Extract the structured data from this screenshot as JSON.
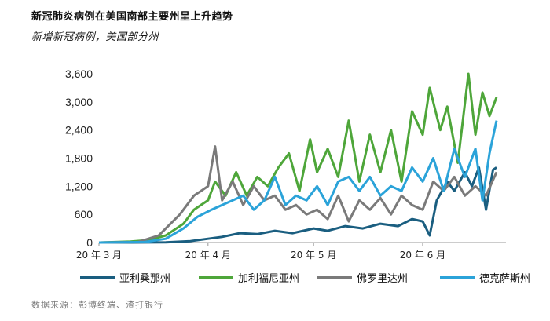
{
  "header": {
    "title": "新冠肺炎病例在美国南部主要州呈上升趋势",
    "subtitle": "新增新冠病例，美国部分州"
  },
  "footer": {
    "source": "数据来源：彭博终端、渣打银行"
  },
  "chart_data": {
    "type": "line",
    "ylim": [
      0,
      3600
    ],
    "yticks": [
      "0",
      "600",
      "1,200",
      "1,800",
      "2,400",
      "3,000",
      "3,600"
    ],
    "ytick_values": [
      0,
      600,
      1200,
      1800,
      2400,
      3000,
      3600
    ],
    "x_start": "2020-03-01",
    "x_end": "2020-06-22",
    "xticks": [
      {
        "label": "20 年 3 月",
        "date": "2020-03-01"
      },
      {
        "label": "20 年 4 月",
        "date": "2020-04-01"
      },
      {
        "label": "20 年 5 月",
        "date": "2020-05-01"
      },
      {
        "label": "20 年 6 月",
        "date": "2020-06-01"
      }
    ],
    "legend_position": "bottom",
    "series": [
      {
        "name": "亚利桑那州",
        "color": "#1a5e80",
        "points": [
          [
            "2020-03-01",
            0
          ],
          [
            "2020-03-10",
            0
          ],
          [
            "2020-03-20",
            5
          ],
          [
            "2020-03-27",
            30
          ],
          [
            "2020-04-01",
            80
          ],
          [
            "2020-04-05",
            120
          ],
          [
            "2020-04-10",
            200
          ],
          [
            "2020-04-15",
            180
          ],
          [
            "2020-04-20",
            250
          ],
          [
            "2020-04-25",
            200
          ],
          [
            "2020-05-01",
            300
          ],
          [
            "2020-05-05",
            250
          ],
          [
            "2020-05-10",
            350
          ],
          [
            "2020-05-15",
            300
          ],
          [
            "2020-05-20",
            400
          ],
          [
            "2020-05-25",
            350
          ],
          [
            "2020-05-29",
            500
          ],
          [
            "2020-06-01",
            450
          ],
          [
            "2020-06-03",
            150
          ],
          [
            "2020-06-05",
            900
          ],
          [
            "2020-06-08",
            1300
          ],
          [
            "2020-06-10",
            1100
          ],
          [
            "2020-06-13",
            1500
          ],
          [
            "2020-06-15",
            1200
          ],
          [
            "2020-06-17",
            1600
          ],
          [
            "2020-06-19",
            700
          ],
          [
            "2020-06-21",
            1550
          ],
          [
            "2020-06-22",
            1600
          ]
        ]
      },
      {
        "name": "加利福尼亚州",
        "color": "#4ea63a",
        "points": [
          [
            "2020-03-01",
            0
          ],
          [
            "2020-03-10",
            20
          ],
          [
            "2020-03-15",
            50
          ],
          [
            "2020-03-20",
            150
          ],
          [
            "2020-03-25",
            400
          ],
          [
            "2020-03-28",
            700
          ],
          [
            "2020-04-01",
            900
          ],
          [
            "2020-04-03",
            1300
          ],
          [
            "2020-04-06",
            1000
          ],
          [
            "2020-04-09",
            1500
          ],
          [
            "2020-04-12",
            1000
          ],
          [
            "2020-04-15",
            1400
          ],
          [
            "2020-04-18",
            1200
          ],
          [
            "2020-04-21",
            1600
          ],
          [
            "2020-04-24",
            1900
          ],
          [
            "2020-04-27",
            1100
          ],
          [
            "2020-04-30",
            2200
          ],
          [
            "2020-05-02",
            1500
          ],
          [
            "2020-05-05",
            2000
          ],
          [
            "2020-05-08",
            1400
          ],
          [
            "2020-05-11",
            2600
          ],
          [
            "2020-05-14",
            1300
          ],
          [
            "2020-05-17",
            2300
          ],
          [
            "2020-05-20",
            1500
          ],
          [
            "2020-05-23",
            2400
          ],
          [
            "2020-05-26",
            1300
          ],
          [
            "2020-05-29",
            2800
          ],
          [
            "2020-06-01",
            2300
          ],
          [
            "2020-06-03",
            3300
          ],
          [
            "2020-06-06",
            2400
          ],
          [
            "2020-06-08",
            2900
          ],
          [
            "2020-06-11",
            1700
          ],
          [
            "2020-06-14",
            3600
          ],
          [
            "2020-06-16",
            2300
          ],
          [
            "2020-06-18",
            3200
          ],
          [
            "2020-06-20",
            2700
          ],
          [
            "2020-06-22",
            3100
          ]
        ]
      },
      {
        "name": "佛罗里达州",
        "color": "#7a7a7a",
        "points": [
          [
            "2020-03-01",
            0
          ],
          [
            "2020-03-12",
            10
          ],
          [
            "2020-03-18",
            150
          ],
          [
            "2020-03-24",
            600
          ],
          [
            "2020-03-28",
            1000
          ],
          [
            "2020-04-01",
            1200
          ],
          [
            "2020-04-03",
            2050
          ],
          [
            "2020-04-05",
            900
          ],
          [
            "2020-04-08",
            1300
          ],
          [
            "2020-04-11",
            800
          ],
          [
            "2020-04-14",
            1200
          ],
          [
            "2020-04-17",
            900
          ],
          [
            "2020-04-20",
            1000
          ],
          [
            "2020-04-23",
            700
          ],
          [
            "2020-04-26",
            800
          ],
          [
            "2020-04-29",
            600
          ],
          [
            "2020-05-02",
            700
          ],
          [
            "2020-05-05",
            500
          ],
          [
            "2020-05-08",
            1000
          ],
          [
            "2020-05-11",
            450
          ],
          [
            "2020-05-14",
            900
          ],
          [
            "2020-05-17",
            700
          ],
          [
            "2020-05-20",
            950
          ],
          [
            "2020-05-23",
            600
          ],
          [
            "2020-05-26",
            1000
          ],
          [
            "2020-05-29",
            800
          ],
          [
            "2020-06-01",
            700
          ],
          [
            "2020-06-04",
            1300
          ],
          [
            "2020-06-07",
            1100
          ],
          [
            "2020-06-10",
            1400
          ],
          [
            "2020-06-13",
            1000
          ],
          [
            "2020-06-16",
            1200
          ],
          [
            "2020-06-19",
            1000
          ],
          [
            "2020-06-22",
            1500
          ]
        ]
      },
      {
        "name": "德克萨斯州",
        "color": "#2ba3d9",
        "points": [
          [
            "2020-03-01",
            0
          ],
          [
            "2020-03-14",
            10
          ],
          [
            "2020-03-20",
            80
          ],
          [
            "2020-03-25",
            300
          ],
          [
            "2020-03-29",
            550
          ],
          [
            "2020-04-02",
            700
          ],
          [
            "2020-04-05",
            800
          ],
          [
            "2020-04-08",
            900
          ],
          [
            "2020-04-11",
            1000
          ],
          [
            "2020-04-14",
            700
          ],
          [
            "2020-04-17",
            900
          ],
          [
            "2020-04-20",
            1400
          ],
          [
            "2020-04-23",
            800
          ],
          [
            "2020-04-26",
            1000
          ],
          [
            "2020-04-29",
            900
          ],
          [
            "2020-05-02",
            1200
          ],
          [
            "2020-05-05",
            800
          ],
          [
            "2020-05-08",
            1300
          ],
          [
            "2020-05-11",
            1400
          ],
          [
            "2020-05-14",
            1100
          ],
          [
            "2020-05-17",
            1400
          ],
          [
            "2020-05-20",
            1000
          ],
          [
            "2020-05-23",
            1200
          ],
          [
            "2020-05-26",
            1100
          ],
          [
            "2020-05-29",
            1600
          ],
          [
            "2020-06-01",
            1300
          ],
          [
            "2020-06-04",
            1800
          ],
          [
            "2020-06-07",
            1100
          ],
          [
            "2020-06-10",
            2000
          ],
          [
            "2020-06-13",
            1400
          ],
          [
            "2020-06-16",
            2000
          ],
          [
            "2020-06-18",
            900
          ],
          [
            "2020-06-20",
            1900
          ],
          [
            "2020-06-22",
            2600
          ]
        ]
      }
    ]
  }
}
